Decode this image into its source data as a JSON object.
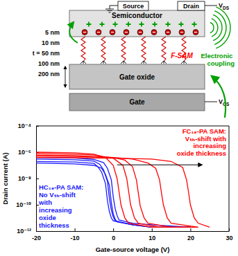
{
  "diagram": {
    "source": "Source",
    "drain": "Drain",
    "semiconductor": "Semiconductor",
    "sam": "F-SAM",
    "oxide": "Gate oxide",
    "gate": "Gate",
    "vds": {
      "main": "V",
      "sub": "DS"
    },
    "vgs": {
      "main": "V",
      "sub": "GS"
    },
    "coupling": "Electronic coupling",
    "thicknesses": [
      "5 nm",
      "10 nm",
      "t = 50 nm",
      "100 nm",
      "200 nm"
    ]
  },
  "chart_data": {
    "type": "line",
    "log": "y",
    "x_label": "Gate-source voltage (V)",
    "y_label": "Drain current (A)",
    "xlim": [
      -20,
      30
    ],
    "xticks": [
      -20,
      -10,
      0,
      10,
      20,
      30
    ],
    "ylim": [
      1e-12,
      0.0001
    ],
    "yticks": [
      {
        "value": 1e-12,
        "label": "10⁻¹²"
      },
      {
        "value": 1e-10,
        "label": "10⁻¹⁰"
      },
      {
        "value": 1e-08,
        "label": "10⁻⁸"
      },
      {
        "value": 1e-06,
        "label": "10⁻⁶"
      },
      {
        "value": 0.0001,
        "label": "10⁻⁴"
      }
    ],
    "series": [
      {
        "color": "#1a1aff",
        "x": [
          -20,
          -10,
          -5,
          -4,
          -3,
          -2,
          -1.5,
          -1,
          -0.5,
          0,
          5,
          10,
          20
        ],
        "values": [
          2e-07,
          1.8e-07,
          1.4e-07,
          8e-08,
          3e-08,
          4e-09,
          2e-10,
          3e-11,
          1e-11,
          6e-12,
          3e-12,
          2e-12,
          2e-12
        ]
      },
      {
        "color": "#1a1aff",
        "x": [
          -20,
          -10,
          -5,
          -3.5,
          -2.5,
          -1.5,
          -1,
          -0.5,
          0,
          0.5,
          5,
          10,
          20
        ],
        "values": [
          3e-07,
          2.7e-07,
          2.1e-07,
          1.2e-07,
          4.5e-08,
          6e-09,
          3e-10,
          4e-11,
          1.2e-11,
          6e-12,
          3e-12,
          2e-12,
          2e-12
        ]
      },
      {
        "color": "#1a1aff",
        "x": [
          -20,
          -10,
          -5,
          -3,
          -2,
          -1,
          -0.5,
          0,
          0.5,
          1,
          5,
          10,
          20
        ],
        "values": [
          1.5e-07,
          1.3e-07,
          1e-07,
          6e-08,
          2e-08,
          3e-09,
          1.5e-10,
          2e-11,
          8e-12,
          5e-12,
          3e-12,
          2e-12,
          2e-12
        ]
      },
      {
        "color": "#1a1aff",
        "x": [
          -20,
          -10,
          -5,
          -2.5,
          -1.5,
          -0.5,
          0,
          0.5,
          1,
          1.5,
          5,
          10,
          20
        ],
        "values": [
          4e-07,
          3.6e-07,
          2.8e-07,
          1.6e-07,
          6e-08,
          8e-09,
          4e-10,
          5e-11,
          1.5e-11,
          7e-12,
          4e-12,
          3e-12,
          2e-12
        ]
      },
      {
        "color": "#ff0000",
        "x": [
          -20,
          -10,
          -5,
          -2,
          0,
          1,
          1.5,
          2,
          3,
          4,
          10,
          20
        ],
        "values": [
          1e-06,
          9e-07,
          7e-07,
          4e-07,
          1e-07,
          1e-08,
          1e-09,
          1e-10,
          1e-11,
          4e-12,
          2e-12,
          2e-12
        ]
      },
      {
        "color": "#ff0000",
        "x": [
          -20,
          -10,
          -5,
          0,
          2.5,
          3.5,
          4,
          4.5,
          5.5,
          6.5,
          12,
          20
        ],
        "values": [
          8e-07,
          7e-07,
          6e-07,
          3.5e-07,
          1e-07,
          1e-08,
          1e-09,
          1e-10,
          1e-11,
          4e-12,
          2e-12,
          2e-12
        ]
      },
      {
        "color": "#ff0000",
        "x": [
          -20,
          -10,
          0,
          3,
          5,
          6,
          6.5,
          7,
          8,
          9,
          15,
          22
        ],
        "values": [
          6e-07,
          5.5e-07,
          4e-07,
          2.5e-07,
          8e-08,
          8e-09,
          8e-10,
          8e-11,
          1e-11,
          4e-12,
          2e-12,
          2e-12
        ]
      },
      {
        "color": "#ff0000",
        "x": [
          -20,
          -10,
          0,
          5,
          9,
          11,
          12,
          12.5,
          13,
          14,
          15,
          22
        ],
        "values": [
          5e-07,
          4.8e-07,
          4e-07,
          3e-07,
          1.5e-07,
          6e-08,
          8e-09,
          8e-10,
          1e-10,
          1e-11,
          4e-12,
          2e-12
        ]
      },
      {
        "color": "#ff0000",
        "x": [
          -20,
          -10,
          0,
          10,
          15,
          18,
          19,
          19.5,
          20,
          21,
          22,
          25
        ],
        "values": [
          4e-07,
          3.8e-07,
          3.5e-07,
          3e-07,
          2e-07,
          7e-08,
          8e-09,
          1e-09,
          1e-10,
          1e-11,
          4e-12,
          2e-12
        ]
      }
    ],
    "annotations": [
      {
        "color": "#1a1aff",
        "lines": [
          "HC₁₈-PA SAM:",
          "No Vₜₕ-shift",
          "with",
          "increasing",
          "oxide",
          "thickness"
        ]
      },
      {
        "color": "#ff0000",
        "lines": [
          "FC₁₈-PA SAM:",
          "Vₜₕ-shift with",
          "increasing",
          "oxide thickness"
        ]
      }
    ]
  }
}
